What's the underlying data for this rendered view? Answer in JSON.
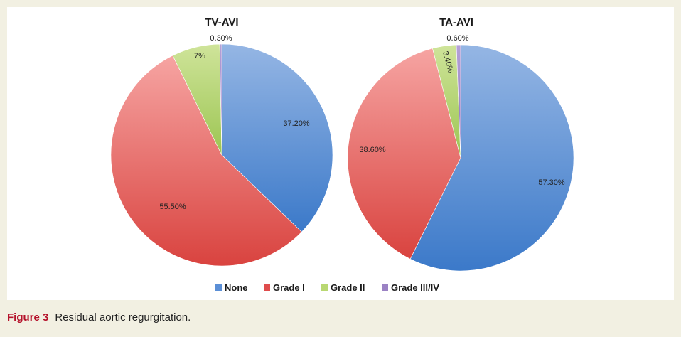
{
  "chart_data": [
    {
      "type": "pie",
      "title": "TV-AVI",
      "slices": [
        {
          "label": "None",
          "value": 37.2,
          "display": "37.20%"
        },
        {
          "label": "Grade I",
          "value": 55.5,
          "display": "55.50%"
        },
        {
          "label": "Grade II",
          "value": 7.0,
          "display": "7%"
        },
        {
          "label": "Grade III/IV",
          "value": 0.3,
          "display": "0.30%"
        }
      ]
    },
    {
      "type": "pie",
      "title": "TA-AVI",
      "slices": [
        {
          "label": "None",
          "value": 57.3,
          "display": "57.30%"
        },
        {
          "label": "Grade I",
          "value": 38.6,
          "display": "38.60%"
        },
        {
          "label": "Grade II",
          "value": 3.4,
          "display": "3.40%"
        },
        {
          "label": "Grade III/IV",
          "value": 0.6,
          "display": "0.60%"
        }
      ]
    }
  ],
  "legend": {
    "position": "bottom",
    "items": [
      {
        "label": "None",
        "color": "#5b8fd6"
      },
      {
        "label": "Grade I",
        "color": "#df4c4c"
      },
      {
        "label": "Grade II",
        "color": "#b9d872"
      },
      {
        "label": "Grade III/IV",
        "color": "#9b82c4"
      }
    ]
  },
  "caption": {
    "label": "Figure 3",
    "text": "Residual aortic regurgitation."
  }
}
